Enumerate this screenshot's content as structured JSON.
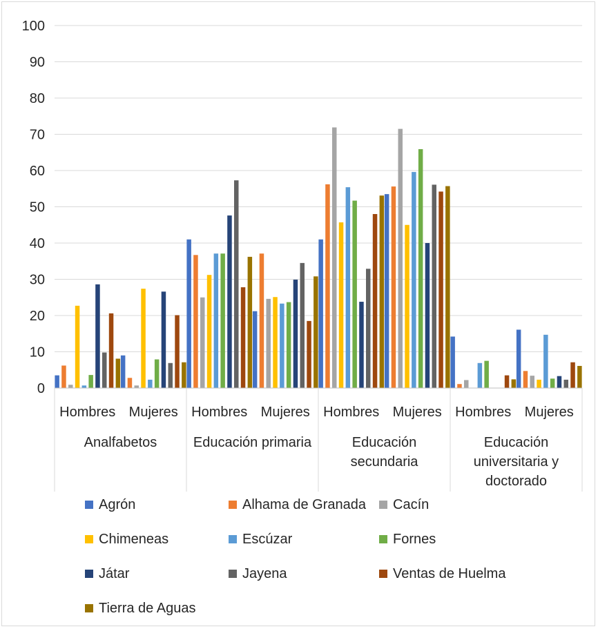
{
  "chart_data": {
    "type": "bar",
    "title": "",
    "xlabel": "",
    "ylabel": "",
    "ylim": [
      0,
      100
    ],
    "yticks": [
      0,
      10,
      20,
      30,
      40,
      50,
      60,
      70,
      80,
      90,
      100
    ],
    "grid": true,
    "legend_position": "bottom",
    "groups": [
      {
        "label": "Analfabetos",
        "categories": [
          "Hombres",
          "Mujeres"
        ]
      },
      {
        "label": "Educación primaria",
        "categories": [
          "Hombres",
          "Mujeres"
        ]
      },
      {
        "label": "Educación secundaria",
        "categories": [
          "Hombres",
          "Mujeres"
        ]
      },
      {
        "label": "Educación universitaria y doctorado",
        "categories": [
          "Hombres",
          "Mujeres"
        ]
      }
    ],
    "series": [
      {
        "name": "Agrón",
        "color": "#4472C4",
        "values": [
          3.5,
          9.0,
          41.0,
          21.2,
          41.0,
          53.5,
          14.2,
          16.1
        ]
      },
      {
        "name": "Alhama de Granada",
        "color": "#ED7D31",
        "values": [
          6.2,
          2.8,
          36.7,
          37.1,
          56.2,
          55.6,
          1.1,
          4.7
        ]
      },
      {
        "name": "Cacín",
        "color": "#A5A5A5",
        "values": [
          0.9,
          0.7,
          25.0,
          24.6,
          71.9,
          71.5,
          2.2,
          3.4
        ]
      },
      {
        "name": "Chimeneas",
        "color": "#FFC000",
        "values": [
          22.7,
          27.4,
          31.2,
          25.1,
          45.7,
          45.0,
          0,
          2.3
        ]
      },
      {
        "name": "Escúzar",
        "color": "#5B9BD5",
        "values": [
          0.7,
          2.3,
          37.1,
          23.3,
          55.4,
          59.6,
          6.9,
          14.7
        ]
      },
      {
        "name": "Fornes",
        "color": "#70AD47",
        "values": [
          3.6,
          7.9,
          37.1,
          23.7,
          51.7,
          65.9,
          7.5,
          2.6
        ]
      },
      {
        "name": "Játar",
        "color": "#264478",
        "values": [
          28.6,
          26.6,
          47.6,
          29.9,
          23.8,
          40.0,
          0,
          3.3
        ]
      },
      {
        "name": "Jayena",
        "color": "#636363",
        "values": [
          9.8,
          6.9,
          57.3,
          34.5,
          32.9,
          56.1,
          0,
          2.3
        ]
      },
      {
        "name": "Ventas de Huelma",
        "color": "#9E480E",
        "values": [
          20.6,
          20.1,
          27.8,
          18.5,
          48.0,
          54.2,
          3.5,
          7.1
        ]
      },
      {
        "name": "Tierra de Aguas",
        "color": "#997300",
        "values": [
          8.1,
          7.1,
          36.2,
          30.8,
          53.1,
          55.7,
          2.4,
          6.1
        ]
      }
    ]
  }
}
